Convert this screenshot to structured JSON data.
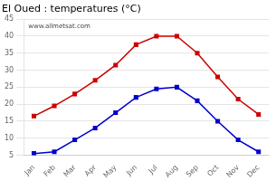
{
  "chart_data": {
    "type": "line",
    "title": "El Oued : temperatures (°C)",
    "categories": [
      "Jan",
      "Feb",
      "Mar",
      "Apr",
      "May",
      "Jun",
      "Jul",
      "Aug",
      "Sep",
      "Oct",
      "Nov",
      "Dec"
    ],
    "series": [
      {
        "color": "#cc0000",
        "marker": "square",
        "values": [
          16.5,
          19.5,
          23.0,
          27.0,
          31.5,
          37.5,
          40.0,
          40.0,
          35.0,
          28.0,
          21.5,
          17.0
        ]
      },
      {
        "color": "#0000cc",
        "marker": "square",
        "values": [
          5.5,
          6.0,
          9.5,
          13.0,
          17.5,
          22.0,
          24.5,
          25.0,
          21.0,
          15.0,
          9.5,
          6.0
        ]
      }
    ],
    "ylim": [
      5,
      45
    ],
    "yticks": [
      5,
      10,
      15,
      20,
      25,
      30,
      35,
      40,
      45
    ],
    "grid": "y",
    "annotations": [
      "www.allmetsat.com"
    ]
  }
}
